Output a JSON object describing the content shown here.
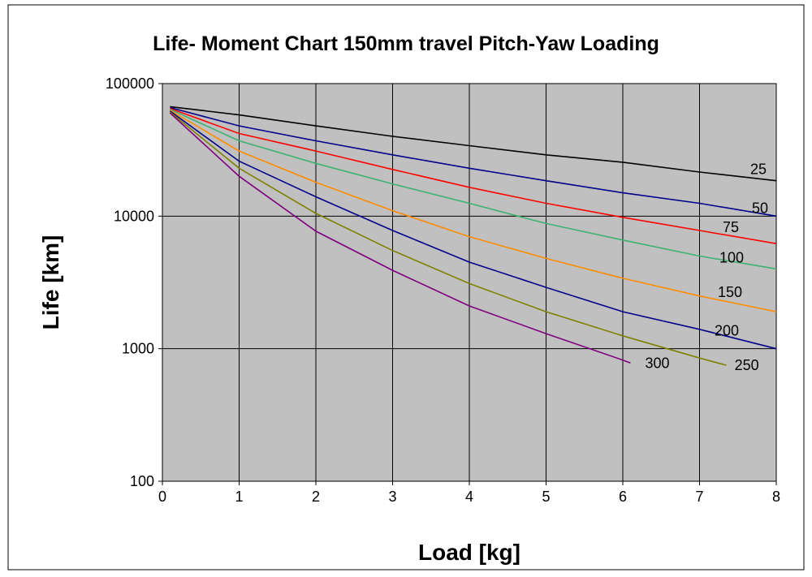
{
  "chart_data": {
    "type": "line",
    "title": "Life- Moment Chart 150mm travel Pitch-Yaw Loading",
    "xlabel": "Load [kg]",
    "ylabel": "Life [km]",
    "xlim": [
      0,
      8
    ],
    "ylim": [
      100,
      100000
    ],
    "y_scale": "log",
    "grid": true,
    "x_ticks": [
      "0",
      "1",
      "2",
      "3",
      "4",
      "5",
      "6",
      "7",
      "8"
    ],
    "y_ticks": [
      "100",
      "1000",
      "10000",
      "100000"
    ],
    "colors": {
      "plot_background": "#c0c0c0",
      "chart_background": "#ffffff"
    },
    "series": [
      {
        "name": "25",
        "color": "#000000",
        "x": [
          0.1,
          1,
          2,
          3,
          4,
          5,
          6,
          7,
          8
        ],
        "y": [
          67000,
          58000,
          48000,
          40000,
          34000,
          29000,
          25500,
          21500,
          18500
        ]
      },
      {
        "name": "50",
        "color": "#00008b",
        "x": [
          0.1,
          1,
          2,
          3,
          4,
          5,
          6,
          7,
          8
        ],
        "y": [
          66000,
          48000,
          37000,
          29000,
          23000,
          18500,
          15000,
          12500,
          10000
        ]
      },
      {
        "name": "75",
        "color": "#ff0000",
        "x": [
          0.1,
          1,
          2,
          3,
          4,
          5,
          6,
          7,
          8
        ],
        "y": [
          65000,
          42000,
          31000,
          22500,
          16500,
          12500,
          9800,
          7800,
          6200
        ]
      },
      {
        "name": "100",
        "color": "#3cb371",
        "x": [
          0.1,
          1,
          2,
          3,
          4,
          5,
          6,
          7,
          8
        ],
        "y": [
          64000,
          37000,
          25000,
          17500,
          12500,
          8800,
          6600,
          5000,
          4000
        ]
      },
      {
        "name": "150",
        "color": "#ff8c00",
        "x": [
          0.1,
          1,
          2,
          3,
          4,
          5,
          6,
          7,
          8
        ],
        "y": [
          63000,
          31000,
          18000,
          11000,
          7000,
          4800,
          3400,
          2500,
          1900
        ]
      },
      {
        "name": "200",
        "color": "#00008b",
        "x": [
          0.1,
          1,
          2,
          3,
          4,
          5,
          6,
          7,
          8
        ],
        "y": [
          62000,
          26000,
          14000,
          7800,
          4500,
          2900,
          1900,
          1400,
          1000
        ]
      },
      {
        "name": "250",
        "color": "#808000",
        "x": [
          0.1,
          1,
          2,
          3,
          4,
          5,
          6,
          7,
          7.35
        ],
        "y": [
          61000,
          23000,
          10500,
          5500,
          3100,
          1900,
          1250,
          850,
          750
        ]
      },
      {
        "name": "300",
        "color": "#800080",
        "x": [
          0.1,
          1,
          2,
          3,
          4,
          5,
          6,
          6.1
        ],
        "y": [
          60000,
          20000,
          7700,
          3900,
          2100,
          1300,
          820,
          780
        ]
      }
    ]
  }
}
